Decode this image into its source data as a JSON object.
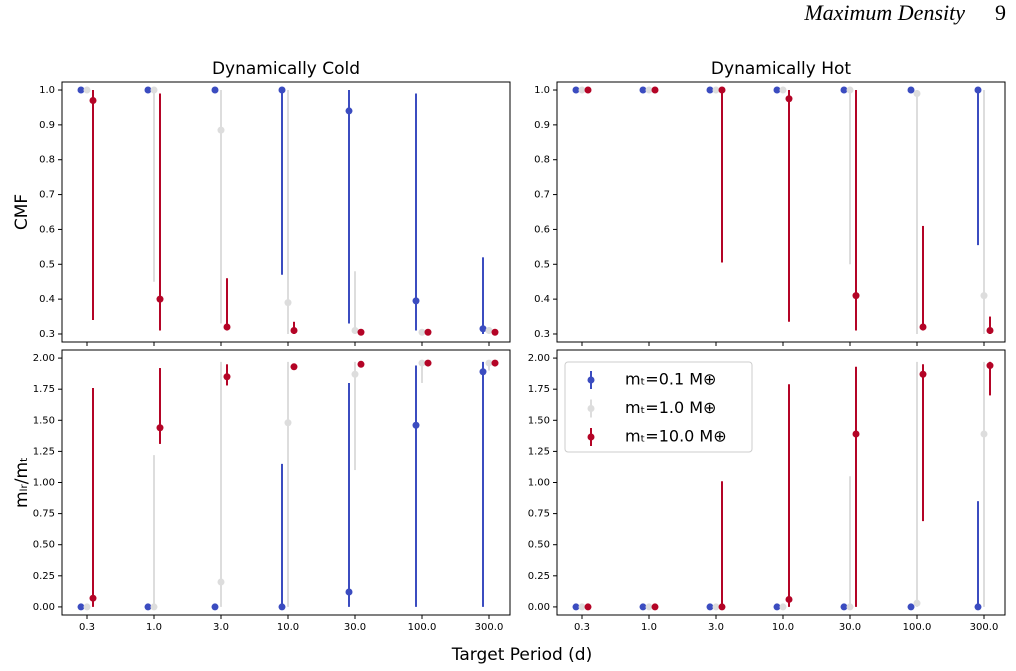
{
  "page_header": {
    "running_head": "Maximum Density",
    "page_number": "9"
  },
  "x_label": "Target Period (d)",
  "chart_data": [
    {
      "type": "errorbar",
      "title": "Dynamically Cold",
      "y_label": "CMF",
      "ylim": [
        0.277,
        1.023
      ],
      "yticks": [
        0.3,
        0.4,
        0.5,
        0.6,
        0.7,
        0.8,
        0.9,
        {
          "value": 1,
          "label": "1.0"
        }
      ],
      "series": [
        {
          "color": "#3b4cc0",
          "values": [
            1,
            1,
            1,
            1,
            0.94,
            0.395,
            0.315
          ],
          "lower": [
            null,
            null,
            null,
            0.47,
            0.33,
            0.31,
            0.3
          ],
          "upper": [
            null,
            null,
            null,
            1,
            1,
            0.99,
            0.52
          ]
        },
        {
          "color": "#dddddd",
          "values": [
            1,
            1,
            0.885,
            0.39,
            0.31,
            0.305,
            0.31
          ],
          "lower": [
            null,
            0.45,
            0.33,
            0.3,
            0.3,
            0.3,
            0.3
          ],
          "upper": [
            null,
            1,
            1,
            1,
            0.48,
            0.31,
            0.32
          ]
        },
        {
          "color": "#b40426",
          "values": [
            0.97,
            0.4,
            0.32,
            0.31,
            0.305,
            0.305,
            0.305
          ],
          "lower": [
            0.34,
            0.31,
            0.31,
            0.3,
            null,
            null,
            null
          ],
          "upper": [
            1,
            0.99,
            0.46,
            0.335,
            null,
            null,
            null
          ]
        }
      ]
    },
    {
      "type": "errorbar",
      "title": "Dynamically Hot",
      "ylim": [
        0.277,
        1.023
      ],
      "yticks": [
        0.3,
        0.4,
        0.5,
        0.6,
        0.7,
        0.8,
        0.9,
        {
          "value": 1,
          "label": "1.0"
        }
      ],
      "series": [
        {
          "color": "#3b4cc0",
          "values": [
            1,
            1,
            1,
            1,
            1,
            1,
            1
          ],
          "lower": [
            null,
            null,
            null,
            null,
            null,
            null,
            0.555
          ],
          "upper": [
            null,
            null,
            null,
            null,
            null,
            null,
            1
          ]
        },
        {
          "color": "#dddddd",
          "values": [
            1,
            1,
            1,
            1,
            1,
            0.99,
            0.41
          ],
          "lower": [
            null,
            null,
            null,
            null,
            0.5,
            0.3,
            0.3
          ],
          "upper": [
            null,
            null,
            null,
            null,
            1,
            1,
            1
          ]
        },
        {
          "color": "#b40426",
          "values": [
            1,
            1,
            1,
            0.975,
            0.41,
            0.32,
            0.31
          ],
          "lower": [
            null,
            null,
            0.505,
            0.335,
            0.31,
            0.31,
            0.3
          ],
          "upper": [
            null,
            null,
            1,
            1,
            1,
            0.61,
            0.35
          ]
        }
      ]
    },
    {
      "type": "errorbar",
      "y_label": "mₗᵣ/mₜ",
      "categories": [
        "0.3",
        "1.0",
        "3.0",
        "10.0",
        "30.0",
        "100.0",
        "300.0"
      ],
      "ylim": [
        -0.065,
        2.065
      ],
      "yticks": [
        {
          "value": 0,
          "label": "0.00"
        },
        0.25,
        {
          "value": 0.5,
          "label": "0.50"
        },
        0.75,
        {
          "value": 1,
          "label": "1.00"
        },
        1.25,
        {
          "value": 1.5,
          "label": "1.50"
        },
        1.75,
        {
          "value": 2,
          "label": "2.00"
        }
      ],
      "series": [
        {
          "color": "#3b4cc0",
          "values": [
            0,
            0,
            0,
            0,
            0.12,
            1.46,
            1.89
          ],
          "lower": [
            null,
            null,
            null,
            0,
            0,
            0,
            0
          ],
          "upper": [
            null,
            null,
            null,
            1.15,
            1.8,
            1.94,
            1.97
          ]
        },
        {
          "color": "#dddddd",
          "values": [
            0,
            0,
            0.2,
            1.48,
            1.87,
            1.96,
            1.96
          ],
          "lower": [
            null,
            0,
            0,
            0,
            1.1,
            1.8,
            1.9
          ],
          "upper": [
            null,
            1.22,
            1.97,
            1.97,
            1.97,
            1.97,
            1.97
          ]
        },
        {
          "color": "#b40426",
          "values": [
            0.07,
            1.44,
            1.85,
            1.93,
            1.95,
            1.96,
            1.96
          ],
          "lower": [
            0,
            1.31,
            1.78,
            null,
            null,
            null,
            null
          ],
          "upper": [
            1.76,
            1.92,
            1.95,
            null,
            null,
            null,
            null
          ]
        }
      ]
    },
    {
      "type": "errorbar",
      "categories": [
        "0.3",
        "1.0",
        "3.0",
        "10.0",
        "30.0",
        "100.0",
        "300.0"
      ],
      "ylim": [
        -0.065,
        2.065
      ],
      "yticks": [
        {
          "value": 0,
          "label": "0.00"
        },
        0.25,
        {
          "value": 0.5,
          "label": "0.50"
        },
        0.75,
        {
          "value": 1,
          "label": "1.00"
        },
        1.25,
        {
          "value": 1.5,
          "label": "1.50"
        },
        1.75,
        {
          "value": 2,
          "label": "2.00"
        }
      ],
      "legend": "upper left",
      "series": [
        {
          "name": "mₜ=0.1 M⊕",
          "color": "#3b4cc0",
          "values": [
            0,
            0,
            0,
            0,
            0,
            0,
            0
          ],
          "lower": [
            null,
            null,
            null,
            null,
            null,
            null,
            0
          ],
          "upper": [
            null,
            null,
            null,
            null,
            null,
            null,
            0.85
          ]
        },
        {
          "name": "mₜ=1.0 M⊕",
          "color": "#dddddd",
          "values": [
            0,
            0,
            0,
            0,
            0,
            0.03,
            1.39
          ],
          "lower": [
            null,
            null,
            null,
            null,
            0,
            0,
            0
          ],
          "upper": [
            null,
            null,
            null,
            null,
            1.05,
            1.97,
            1.97
          ]
        },
        {
          "name": "mₜ=10.0 M⊕",
          "color": "#b40426",
          "values": [
            0,
            0,
            0,
            0.06,
            1.39,
            1.87,
            1.94
          ],
          "lower": [
            null,
            null,
            0,
            0,
            0,
            0.69,
            1.7
          ],
          "upper": [
            null,
            null,
            1.01,
            1.79,
            1.93,
            1.95,
            1.97
          ]
        }
      ]
    }
  ]
}
